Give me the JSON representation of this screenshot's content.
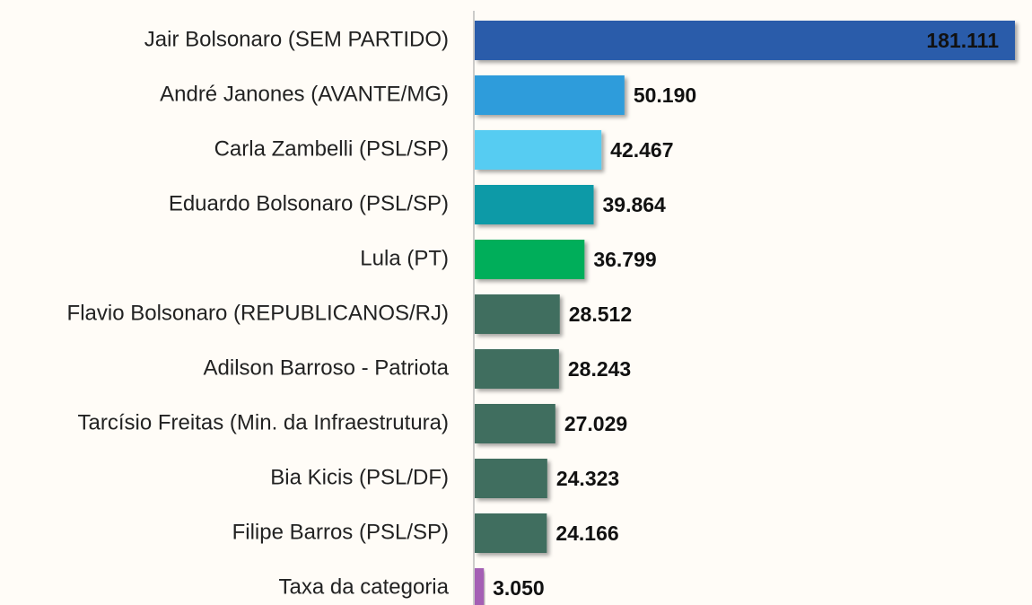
{
  "chart_data": {
    "type": "bar",
    "orientation": "horizontal",
    "categories": [
      "Jair Bolsonaro (SEM PARTIDO)",
      "André Janones (AVANTE/MG)",
      "Carla Zambelli (PSL/SP)",
      "Eduardo Bolsonaro (PSL/SP)",
      "Lula (PT)",
      "Flavio Bolsonaro (REPUBLICANOS/RJ)",
      "Adilson Barroso - Patriota",
      "Tarcísio Freitas (Min. da Infraestrutura)",
      "Bia Kicis (PSL/DF)",
      "Filipe Barros (PSL/SP)",
      "Taxa da categoria"
    ],
    "values": [
      181111,
      50190,
      42467,
      39864,
      36799,
      28512,
      28243,
      27029,
      24323,
      24166,
      3050
    ],
    "value_labels": [
      "181.111",
      "50.190",
      "42.467",
      "39.864",
      "36.799",
      "28.512",
      "28.243",
      "27.029",
      "24.323",
      "24.166",
      "3.050"
    ],
    "colors": [
      "#2a5caa",
      "#2d9cdb",
      "#56ccf2",
      "#0e9aa7",
      "#00ae5a",
      "#3f6e5f",
      "#3f6e5f",
      "#3f6e5f",
      "#3f6e5f",
      "#3f6e5f",
      "#a45fb4"
    ]
  }
}
